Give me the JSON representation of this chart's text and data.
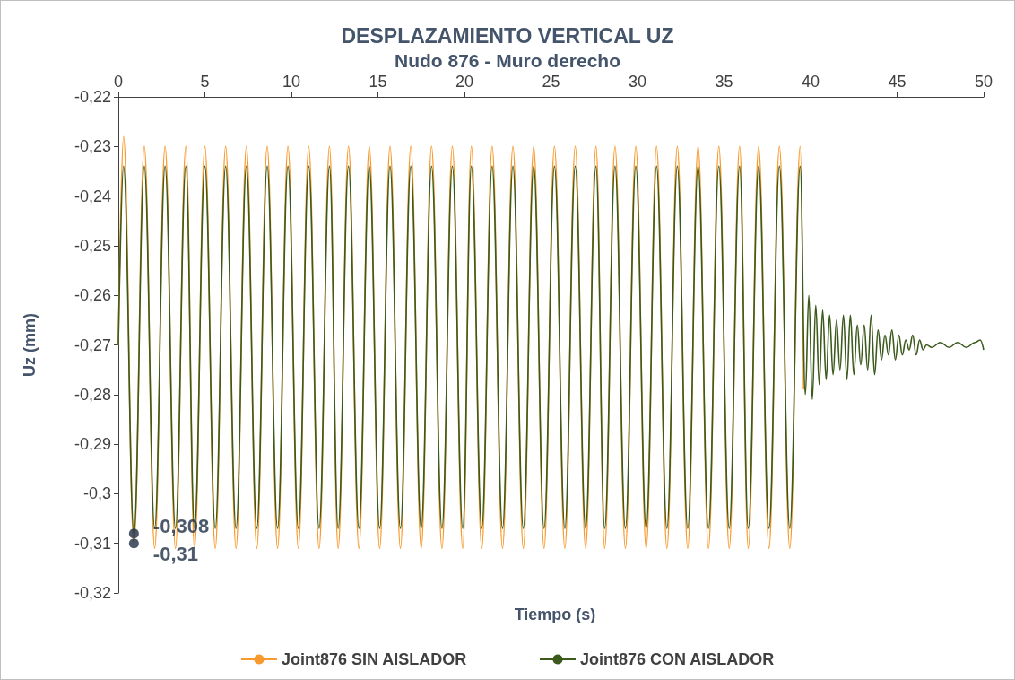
{
  "chart_data": {
    "type": "line",
    "title": "DESPLAZAMIENTO VERTICAL UZ",
    "subtitle": "Nudo 876 - Muro derecho",
    "xlabel": "Tiempo (s)",
    "ylabel": "Uz (mm)",
    "xlim": [
      0,
      50
    ],
    "xticks": [
      0,
      5,
      10,
      15,
      20,
      25,
      30,
      35,
      40,
      45,
      50
    ],
    "ylim": [
      -0.32,
      -0.22
    ],
    "yticks": [
      {
        "value": -0.22,
        "label": "-0,22"
      },
      {
        "value": -0.23,
        "label": "-0,23"
      },
      {
        "value": -0.24,
        "label": "-0,24"
      },
      {
        "value": -0.25,
        "label": "-0,25"
      },
      {
        "value": -0.26,
        "label": "-0,26"
      },
      {
        "value": -0.27,
        "label": "-0,27"
      },
      {
        "value": -0.28,
        "label": "-0,28"
      },
      {
        "value": -0.29,
        "label": "-0,29"
      },
      {
        "value": -0.3,
        "label": "-0,3"
      },
      {
        "value": -0.31,
        "label": "-0,31"
      },
      {
        "value": -0.32,
        "label": "-0,32"
      }
    ],
    "grid": false,
    "legend": "bottom",
    "marker": "none",
    "line_style": "solid",
    "annotations": [
      {
        "text": "-0,308",
        "x": 0.9,
        "y": -0.308
      },
      {
        "text": "-0,31",
        "x": 0.9,
        "y": -0.31
      }
    ],
    "series": [
      {
        "name": "Joint876 SIN AISLADOR",
        "color": "#f79a2e",
        "x": [
          0,
          0.3,
          0.9,
          1.5,
          2.1,
          2.7,
          3.3,
          3.9,
          4.4,
          5.0,
          5.6,
          6.2,
          6.8,
          7.4,
          8.0,
          8.6,
          9.2,
          9.8,
          10.4,
          11.0,
          11.6,
          12.2,
          12.7,
          13.3,
          13.9,
          14.5,
          15.1,
          15.7,
          16.3,
          16.9,
          17.5,
          18.1,
          18.7,
          19.3,
          19.9,
          20.4,
          21.0,
          21.6,
          22.2,
          22.8,
          23.4,
          24.0,
          24.6,
          25.2,
          25.8,
          26.4,
          27.0,
          27.6,
          28.1,
          28.7,
          29.3,
          29.9,
          30.5,
          31.1,
          31.7,
          32.3,
          32.9,
          33.5,
          34.1,
          34.7,
          35.3,
          35.9,
          36.4,
          37.0,
          37.6,
          38.2,
          38.8,
          39.4,
          39.6
        ],
        "values": [
          -0.27,
          -0.228,
          -0.31,
          -0.23,
          -0.311,
          -0.23,
          -0.311,
          -0.23,
          -0.311,
          -0.23,
          -0.311,
          -0.23,
          -0.311,
          -0.23,
          -0.311,
          -0.23,
          -0.311,
          -0.23,
          -0.311,
          -0.23,
          -0.311,
          -0.23,
          -0.311,
          -0.23,
          -0.311,
          -0.23,
          -0.311,
          -0.23,
          -0.311,
          -0.23,
          -0.311,
          -0.23,
          -0.311,
          -0.23,
          -0.311,
          -0.23,
          -0.311,
          -0.23,
          -0.311,
          -0.23,
          -0.311,
          -0.23,
          -0.311,
          -0.23,
          -0.311,
          -0.23,
          -0.311,
          -0.23,
          -0.311,
          -0.23,
          -0.311,
          -0.23,
          -0.311,
          -0.23,
          -0.311,
          -0.23,
          -0.311,
          -0.23,
          -0.311,
          -0.23,
          -0.311,
          -0.23,
          -0.311,
          -0.23,
          -0.311,
          -0.23,
          -0.311,
          -0.23,
          -0.279
        ]
      },
      {
        "name": "Joint876 CON AISLADOR",
        "color": "#3b5a1c",
        "x": [
          0,
          0.3,
          0.9,
          1.5,
          2.1,
          2.7,
          3.3,
          3.9,
          4.4,
          5.0,
          5.6,
          6.2,
          6.8,
          7.4,
          8.0,
          8.6,
          9.2,
          9.8,
          10.4,
          11.0,
          11.6,
          12.2,
          12.7,
          13.3,
          13.9,
          14.5,
          15.1,
          15.7,
          16.3,
          16.9,
          17.5,
          18.1,
          18.7,
          19.3,
          19.9,
          20.4,
          21.0,
          21.6,
          22.2,
          22.8,
          23.4,
          24.0,
          24.6,
          25.2,
          25.8,
          26.4,
          27.0,
          27.6,
          28.1,
          28.7,
          29.3,
          29.9,
          30.5,
          31.1,
          31.7,
          32.3,
          32.9,
          33.5,
          34.1,
          34.7,
          35.3,
          35.9,
          36.4,
          37.0,
          37.6,
          38.2,
          38.8,
          39.4,
          39.7,
          39.9,
          40.1,
          40.3,
          40.5,
          40.7,
          40.9,
          41.1,
          41.3,
          41.5,
          41.7,
          41.9,
          42.1,
          42.3,
          42.5,
          42.7,
          42.9,
          43.1,
          43.3,
          43.5,
          43.7,
          43.9,
          44.1,
          44.3,
          44.5,
          44.7,
          44.9,
          45.1,
          45.3,
          45.5,
          45.7,
          45.9,
          46.1,
          46.3,
          46.5,
          46.7,
          47.0,
          47.5,
          48.0,
          48.5,
          49.0,
          49.5,
          49.8,
          50.0
        ],
        "values": [
          -0.27,
          -0.234,
          -0.308,
          -0.234,
          -0.307,
          -0.234,
          -0.307,
          -0.234,
          -0.307,
          -0.234,
          -0.307,
          -0.234,
          -0.307,
          -0.234,
          -0.307,
          -0.234,
          -0.307,
          -0.234,
          -0.307,
          -0.234,
          -0.307,
          -0.234,
          -0.307,
          -0.234,
          -0.307,
          -0.234,
          -0.307,
          -0.234,
          -0.307,
          -0.234,
          -0.307,
          -0.234,
          -0.307,
          -0.234,
          -0.307,
          -0.234,
          -0.307,
          -0.234,
          -0.307,
          -0.234,
          -0.307,
          -0.234,
          -0.307,
          -0.234,
          -0.307,
          -0.234,
          -0.307,
          -0.234,
          -0.307,
          -0.234,
          -0.307,
          -0.234,
          -0.307,
          -0.234,
          -0.307,
          -0.234,
          -0.307,
          -0.234,
          -0.307,
          -0.234,
          -0.307,
          -0.234,
          -0.307,
          -0.234,
          -0.307,
          -0.234,
          -0.307,
          -0.234,
          -0.28,
          -0.26,
          -0.281,
          -0.262,
          -0.278,
          -0.263,
          -0.277,
          -0.264,
          -0.276,
          -0.265,
          -0.275,
          -0.264,
          -0.277,
          -0.264,
          -0.276,
          -0.266,
          -0.274,
          -0.266,
          -0.275,
          -0.264,
          -0.276,
          -0.267,
          -0.273,
          -0.268,
          -0.272,
          -0.267,
          -0.273,
          -0.268,
          -0.272,
          -0.269,
          -0.271,
          -0.268,
          -0.272,
          -0.269,
          -0.271,
          -0.27,
          -0.2705,
          -0.2695,
          -0.2705,
          -0.2695,
          -0.2705,
          -0.2695,
          -0.269,
          -0.271
        ]
      }
    ]
  }
}
